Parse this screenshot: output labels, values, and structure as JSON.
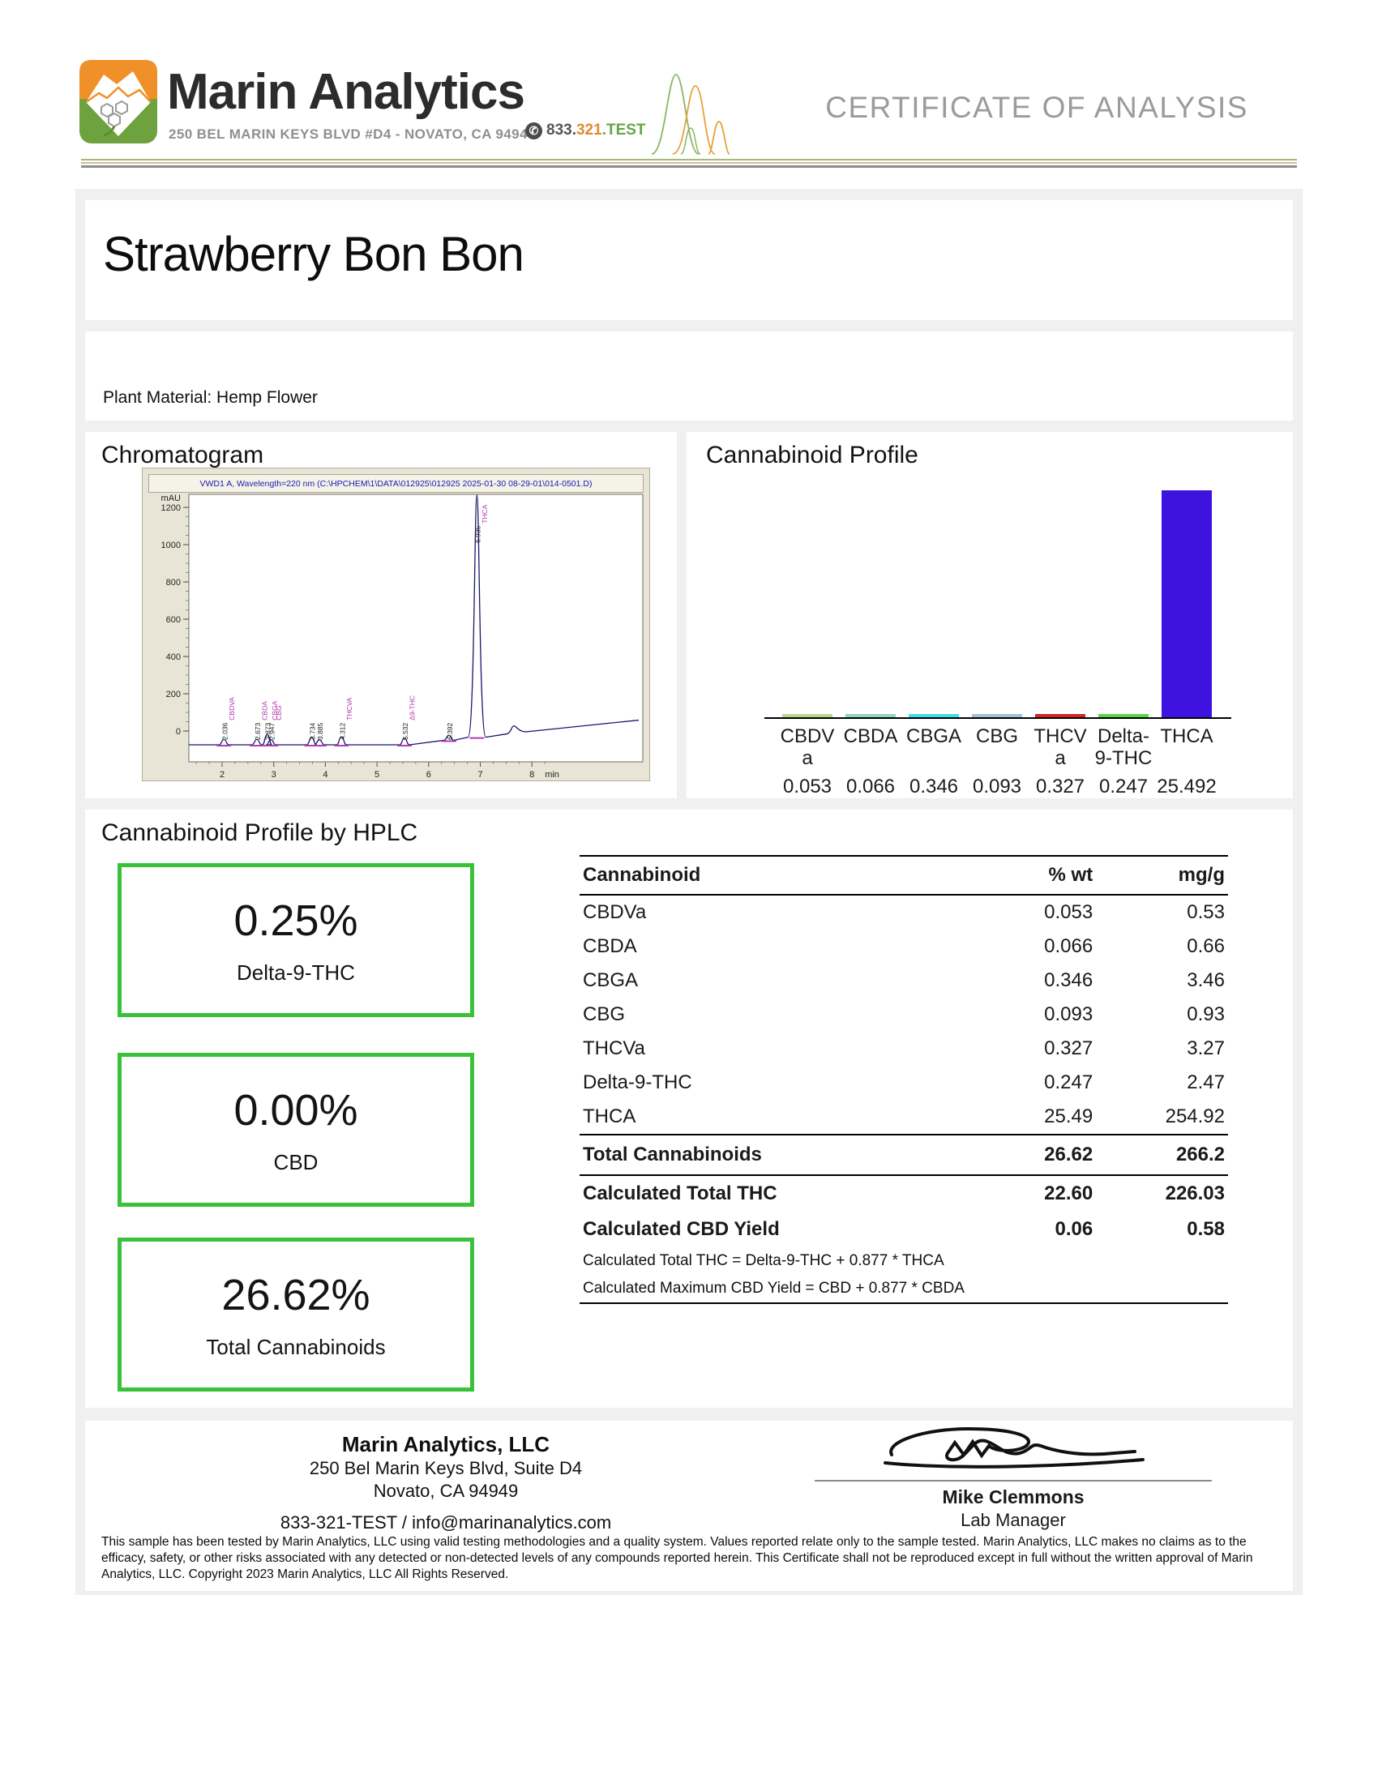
{
  "header": {
    "brand": "Marin Analytics",
    "address": "250 BEL MARIN KEYS BLVD #D4 - NOVATO, CA 94949",
    "phone": {
      "part1": "833.",
      "part2": "321",
      "part3": ".TEST"
    },
    "doc_title": "CERTIFICATE OF ANALYSIS"
  },
  "sample": {
    "name": "Strawberry Bon Bon",
    "material": "Plant Material: Hemp Flower"
  },
  "sections": {
    "chromatogram": "Chromatogram",
    "profile": "Cannabinoid Profile",
    "hplc": "Cannabinoid Profile by HPLC"
  },
  "chart_data": [
    {
      "type": "line",
      "title": "VWD1 A, Wavelength=220 nm (C:\\HPCHEM\\1\\DATA\\012925\\012925 2025-01-30 08-29-01\\014-0501.D)",
      "ylabel": "mAU",
      "xlabel": "min",
      "x_ticks": [
        2,
        3,
        4,
        5,
        6,
        7,
        8
      ],
      "y_ticks": [
        0,
        200,
        400,
        600,
        800,
        1000,
        1200
      ],
      "xlim": [
        1.35,
        10.0
      ],
      "ylim": [
        -100,
        1280
      ],
      "peaks": [
        {
          "time": 2.036,
          "label": "CBDVA",
          "mau": 15
        },
        {
          "time": 2.673,
          "label": "CBDA",
          "mau": 15
        },
        {
          "time": 2.873,
          "label": "CBGA",
          "mau": 28
        },
        {
          "time": 2.947,
          "label": "CBG",
          "mau": 14
        },
        {
          "time": 3.734,
          "label": "",
          "mau": 20
        },
        {
          "time": 3.885,
          "label": "",
          "mau": 14
        },
        {
          "time": 4.312,
          "label": "THCVA",
          "mau": 22
        },
        {
          "time": 5.532,
          "label": "Δ9-THC",
          "mau": 18
        },
        {
          "time": 6.392,
          "label": "",
          "mau": 14
        },
        {
          "time": 6.935,
          "label": "THCA",
          "mau": 1310
        }
      ]
    },
    {
      "type": "bar",
      "title": "Cannabinoid Profile",
      "categories": [
        "CBDVa",
        "CBDA",
        "CBGA",
        "CBG",
        "THCVa",
        "Delta-9-THC",
        "THCA"
      ],
      "category_lines": [
        [
          "CBDV",
          "a"
        ],
        [
          "CBDA"
        ],
        [
          "CBGA"
        ],
        [
          "CBG"
        ],
        [
          "THCV",
          "a"
        ],
        [
          "Delta-",
          "9-THC"
        ],
        [
          "THCA"
        ]
      ],
      "values": [
        0.053,
        0.066,
        0.346,
        0.093,
        0.327,
        0.247,
        25.492
      ],
      "value_labels": [
        "0.053",
        "0.066",
        "0.346",
        "0.093",
        "0.327",
        "0.247",
        "25.492"
      ],
      "colors": [
        "#b9da8d",
        "#90d7c2",
        "#3fe0ea",
        "#a6c0d8",
        "#d5251f",
        "#5ad348",
        "#3e13df"
      ],
      "ylim": [
        0,
        25.492
      ],
      "legend": "none",
      "grid": false
    }
  ],
  "summary_boxes": [
    {
      "value": "0.25%",
      "label": "Delta-9-THC"
    },
    {
      "value": "0.00%",
      "label": "CBD"
    },
    {
      "value": "26.62%",
      "label": "Total Cannabinoids"
    }
  ],
  "table": {
    "headers": [
      "Cannabinoid",
      "% wt",
      "mg/g"
    ],
    "rows": [
      [
        "CBDVa",
        "0.053",
        "0.53"
      ],
      [
        "CBDA",
        "0.066",
        "0.66"
      ],
      [
        "CBGA",
        "0.346",
        "3.46"
      ],
      [
        "CBG",
        "0.093",
        "0.93"
      ],
      [
        "THCVa",
        "0.327",
        "3.27"
      ],
      [
        "Delta-9-THC",
        "0.247",
        "2.47"
      ],
      [
        "THCA",
        "25.49",
        "254.92"
      ]
    ],
    "total_row": [
      "Total Cannabinoids",
      "26.62",
      "266.2"
    ],
    "calculated_rows": [
      [
        "Calculated Total THC",
        "22.60",
        "226.03"
      ],
      [
        "Calculated CBD Yield",
        "0.06",
        "0.58"
      ]
    ],
    "footnotes": [
      "Calculated Total THC = Delta-9-THC + 0.877 * THCA",
      "Calculated Maximum CBD Yield = CBD + 0.877 * CBDA"
    ]
  },
  "footer": {
    "company": "Marin Analytics, LLC",
    "address1": "250 Bel Marin Keys Blvd, Suite D4",
    "address2": "Novato, CA 94949",
    "contact": "833-321-TEST / info@marinanalytics.com",
    "signer": "Mike Clemmons",
    "signer_title": "Lab Manager",
    "disclaimer": "This sample has been tested by Marin Analytics, LLC using valid testing methodologies and a quality system.  Values reported relate only to the sample tested.  Marin Analytics, LLC makes no claims as to the efficacy, safety, or other risks associated with any detected or non-detected levels of any compounds reported herein.  This Certificate shall not be reproduced except in full without the written approval of Marin Analytics, LLC.      Copyright 2023 Marin Analytics, LLC All Rights Reserved."
  },
  "colors": {
    "accent_green": "#3ac13a",
    "panel_gray": "#f0f0f0",
    "chrom_bg": "#e9e5d6",
    "chrom_text_blue": "#1a1ab0",
    "peak_label_magenta": "#b23ab2",
    "trace_navy": "#16166b"
  }
}
